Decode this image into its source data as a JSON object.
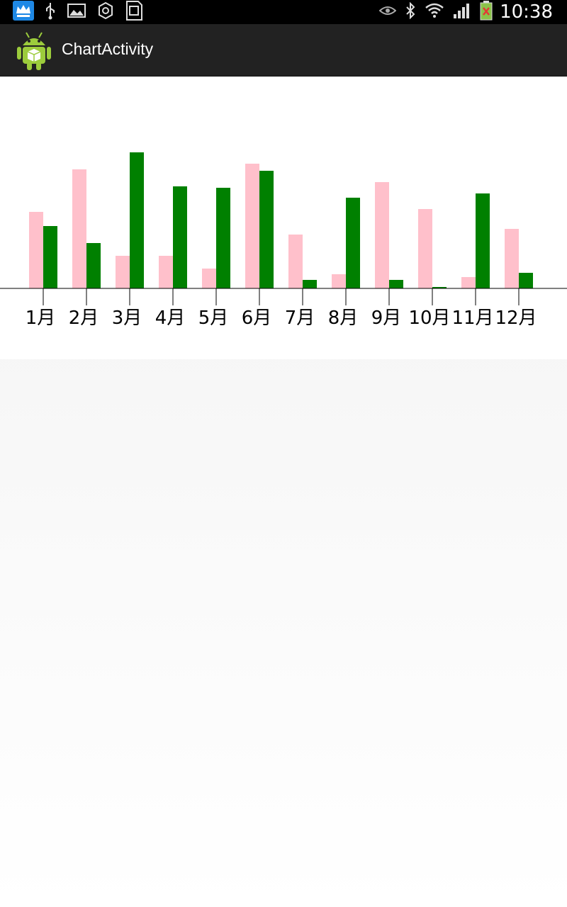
{
  "status_bar": {
    "time": "10:38",
    "icons": [
      "kingroot-icon",
      "usb-icon",
      "image-icon",
      "settings-icon",
      "sd-card-icon",
      "eye-icon",
      "bluetooth-icon",
      "wifi-icon",
      "signal-icon",
      "battery-icon"
    ]
  },
  "action_bar": {
    "title": "ChartActivity",
    "icon": "android-robot-icon"
  },
  "chart_data": {
    "type": "bar",
    "categories": [
      "1月",
      "2月",
      "3月",
      "4月",
      "5月",
      "6月",
      "7月",
      "8月",
      "9月",
      "10月",
      "11月",
      "12月"
    ],
    "series": [
      {
        "values": [
          54,
          84,
          23,
          23,
          14,
          88,
          38,
          10,
          75,
          56,
          8,
          42
        ]
      },
      {
        "values": [
          44,
          32,
          96,
          72,
          71,
          83,
          6,
          64,
          6,
          1,
          67,
          11
        ]
      }
    ],
    "colors": [
      "#ffc0cb",
      "#008000"
    ],
    "ylim": [
      0,
      100
    ],
    "xlabel": "",
    "ylabel": "",
    "grid": false,
    "legend": "none"
  }
}
